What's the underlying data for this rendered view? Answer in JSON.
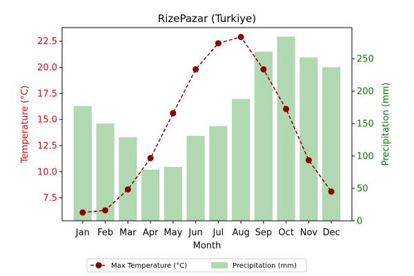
{
  "chart_data": {
    "type": "bar+line",
    "title": "RizePazar (Turkiye)",
    "xlabel": "Month",
    "categories": [
      "Jan",
      "Feb",
      "Mar",
      "Apr",
      "May",
      "Jun",
      "Jul",
      "Aug",
      "Sep",
      "Oct",
      "Nov",
      "Dec"
    ],
    "left_axis": {
      "label": "Temperature (°C)",
      "color": "#ff0000",
      "ylim": [
        5.3,
        23.8
      ],
      "ticks": [
        "7.5",
        "10.0",
        "12.5",
        "15.0",
        "17.5",
        "20.0",
        "22.5"
      ]
    },
    "right_axis": {
      "label": "Precipitation (mm)",
      "color": "#008000",
      "ylim": [
        0,
        298
      ],
      "ticks": [
        "0",
        "50",
        "100",
        "150",
        "200",
        "250"
      ]
    },
    "series": [
      {
        "name": "Max Temperature (°C)",
        "kind": "line",
        "axis": "left",
        "color": "#8b0000",
        "values": [
          6.1,
          6.3,
          8.3,
          11.3,
          15.6,
          19.8,
          22.3,
          22.9,
          19.8,
          16.0,
          11.1,
          8.1
        ]
      },
      {
        "name": "Precipitation (mm)",
        "kind": "bar",
        "axis": "right",
        "color": "#b2d8b2",
        "values": [
          177,
          150,
          129,
          79,
          83,
          131,
          146,
          188,
          261,
          284,
          252,
          237
        ]
      }
    ],
    "grid": false,
    "legend_position": "bottom-center"
  }
}
